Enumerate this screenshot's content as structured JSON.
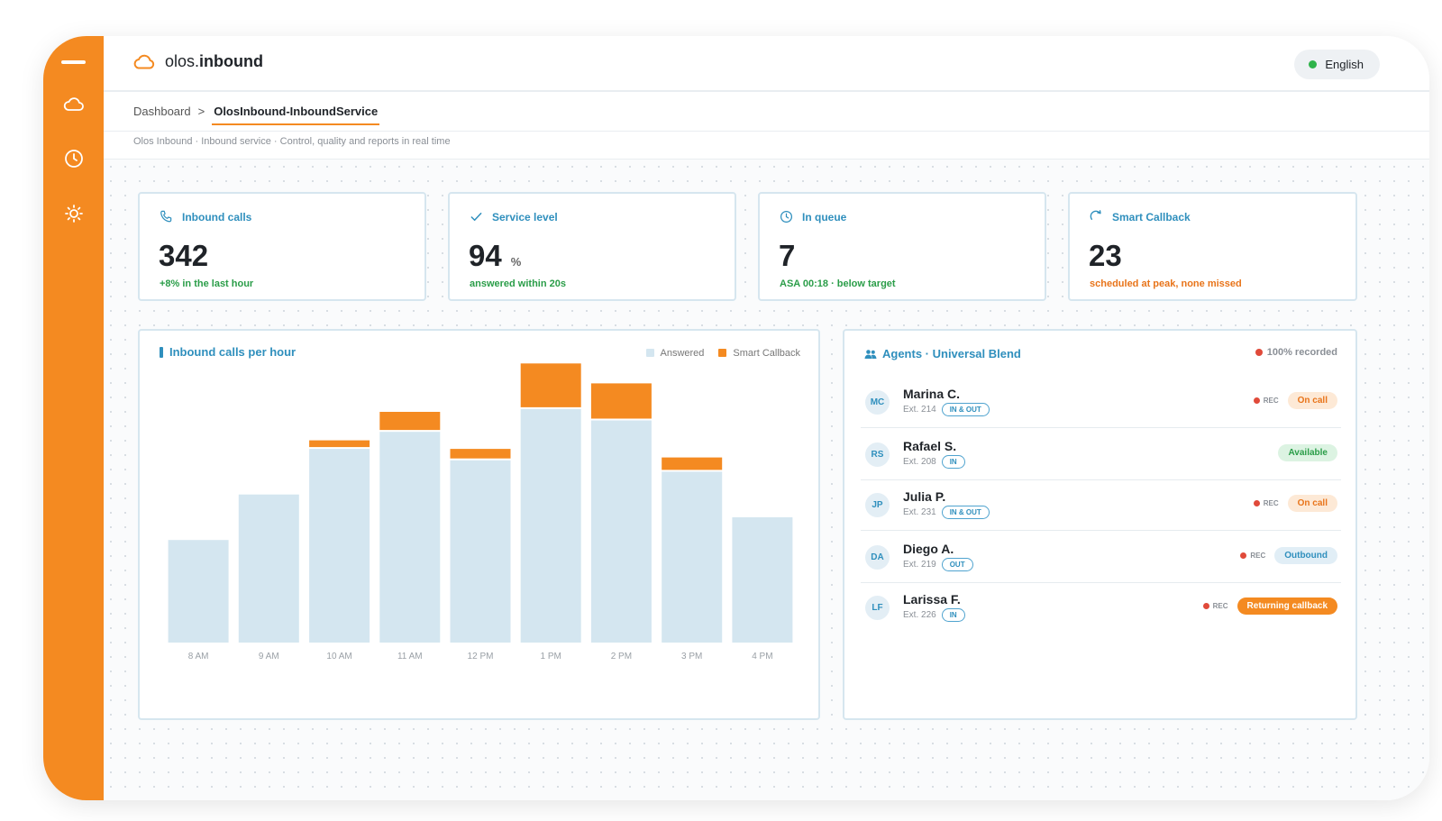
{
  "app": {
    "brand_prefix": "olos.",
    "brand_name": "inbound",
    "language": "English"
  },
  "sidebar": {
    "icons": [
      "menu-icon",
      "cloud-icon",
      "clock-icon",
      "sun-icon"
    ]
  },
  "breadcrumb": {
    "root": "Dashboard",
    "separator": ">",
    "current": "OlosInbound-InboundService"
  },
  "subtitle": "Olos Inbound · Inbound service · Control, quality and reports in real time",
  "kpis": [
    {
      "label": "Inbound calls",
      "value": "342",
      "unit": "",
      "note": "+8% in the last hour",
      "icon": "phone-icon"
    },
    {
      "label": "Service level",
      "value": "94",
      "unit": "%",
      "note": "answered within 20s",
      "icon": "check-icon"
    },
    {
      "label": "In queue",
      "value": "7",
      "unit": "",
      "note": "ASA 00:18 · below target",
      "icon": "clock-icon"
    },
    {
      "label": "Smart Callback",
      "value": "23",
      "unit": "",
      "note": "scheduled at peak, none missed",
      "icon": "refresh-icon"
    }
  ],
  "colors": {
    "accent": "#f48a21",
    "answered": "#d4e6f0",
    "callback": "#f48a21",
    "primary_blue": "#2f8fbd",
    "success": "#2a9d48"
  },
  "chart_data": {
    "type": "bar",
    "stacked": true,
    "title": "Inbound calls per hour",
    "categories": [
      "8 AM",
      "9 AM",
      "10 AM",
      "11 AM",
      "12 PM",
      "1 PM",
      "2 PM",
      "3 PM",
      "4 PM"
    ],
    "series": [
      {
        "name": "Answered",
        "values": [
          36,
          52,
          68,
          74,
          64,
          82,
          78,
          60,
          44
        ]
      },
      {
        "name": "Smart Callback",
        "values": [
          0,
          0,
          3,
          7,
          4,
          16,
          13,
          5,
          0
        ]
      }
    ],
    "ylim": [
      0,
      100
    ],
    "legend": "top-right",
    "grid": false
  },
  "agents_panel": {
    "title": "Agents · Universal Blend",
    "recorded": "100% recorded",
    "rec_label": "REC",
    "agents": [
      {
        "initials": "MC",
        "name": "Marina C.",
        "ext": "Ext. 214",
        "direction": "IN & OUT",
        "rec": true,
        "status": "On call",
        "status_type": "oncall"
      },
      {
        "initials": "RS",
        "name": "Rafael S.",
        "ext": "Ext. 208",
        "direction": "IN",
        "rec": false,
        "status": "Available",
        "status_type": "available"
      },
      {
        "initials": "JP",
        "name": "Julia P.",
        "ext": "Ext. 231",
        "direction": "IN & OUT",
        "rec": true,
        "status": "On call",
        "status_type": "oncall"
      },
      {
        "initials": "DA",
        "name": "Diego A.",
        "ext": "Ext. 219",
        "direction": "OUT",
        "rec": true,
        "status": "Outbound",
        "status_type": "outbound"
      },
      {
        "initials": "LF",
        "name": "Larissa F.",
        "ext": "Ext. 226",
        "direction": "IN",
        "rec": true,
        "status": "Returning callback",
        "status_type": "returning"
      }
    ]
  }
}
